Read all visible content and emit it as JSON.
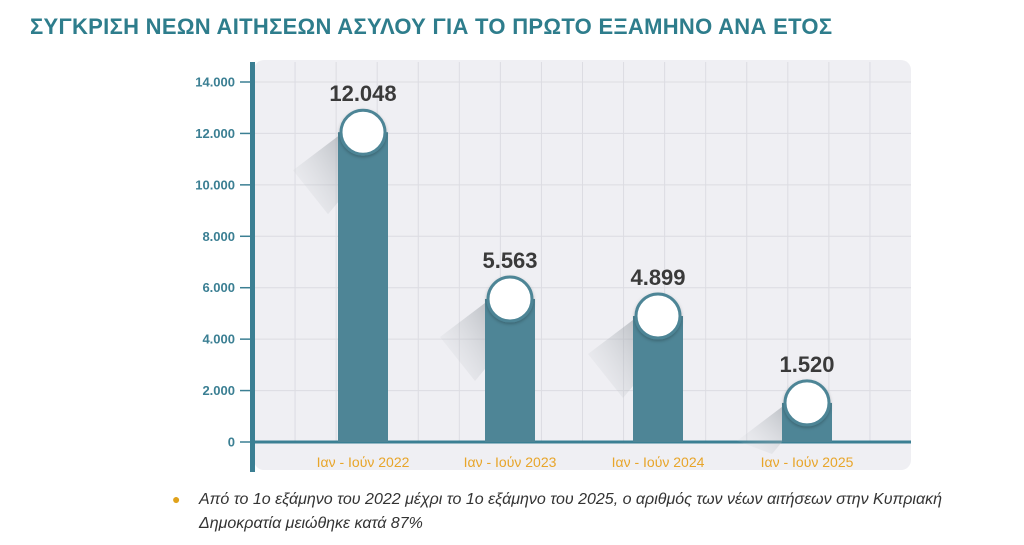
{
  "title": "ΣΥΓΚΡΙΣΗ ΝΕΩΝ ΑΙΤΗΣΕΩΝ ΑΣΥΛΟΥ ΓΙΑ ΤΟ ΠΡΩΤΟ ΕΞΑΜΗΝΟ ΑΝΑ ΕΤΟΣ",
  "colors": {
    "title": "#2e7d8c",
    "bar": "#4e8596",
    "axis": "#3b7f93",
    "category_label": "#e8a52a",
    "value_label": "#3a3a3a",
    "bullet": "#e0a21b",
    "plot_background": "#efeff3"
  },
  "chart_data": {
    "type": "bar",
    "categories": [
      "Ιαν - Ιούν 2022",
      "Ιαν - Ιούν 2023",
      "Ιαν - Ιούν 2024",
      "Ιαν - Ιούν 2025"
    ],
    "values": [
      12048,
      5563,
      4899,
      1520
    ],
    "value_labels": [
      "12.048",
      "5.563",
      "4.899",
      "1.520"
    ],
    "yticks": [
      "0",
      "2.000",
      "4.000",
      "6.000",
      "8.000",
      "10.000",
      "12.000",
      "14.000"
    ],
    "ylim": [
      0,
      14000
    ],
    "grid": true,
    "legend": "none"
  },
  "note": {
    "icon": "bullet-dot-icon",
    "text": "Από το 1ο εξάμηνο του 2022 μέχρι το 1ο εξάμηνο του 2025, ο αριθμός των νέων αιτήσεων στην Κυπριακή Δημοκρατία μειώθηκε κατά 87%"
  }
}
